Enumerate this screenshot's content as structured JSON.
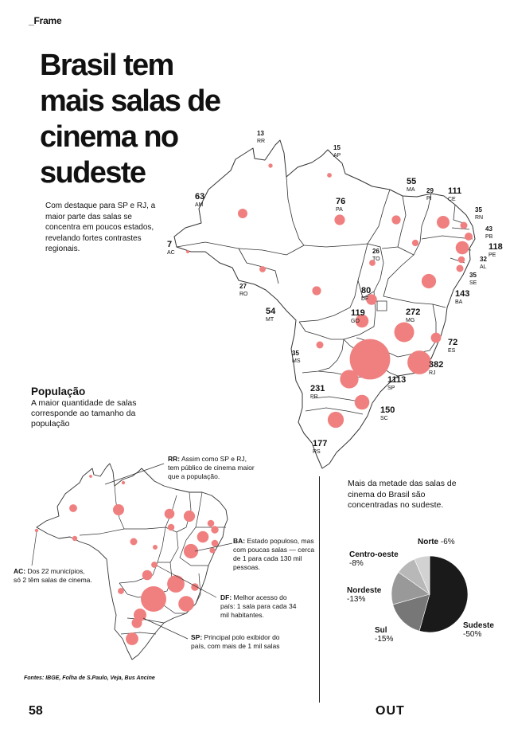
{
  "header": {
    "section": "_Frame"
  },
  "title": {
    "lines": [
      "Brasil tem",
      "mais salas de",
      "cinema no",
      "sudeste"
    ]
  },
  "intro": "Com destaque para SP e RJ, a maior parte das salas se concentra em poucos estados, revelando fortes contrastes regionais.",
  "population": {
    "title": "População",
    "subtitle": "A maior quantidade de salas corresponde ao tamanho da população"
  },
  "notes": {
    "rr": {
      "lead": "RR:",
      "text": "Assim como SP e RJ, tem público de cinema maior que a população."
    },
    "ba": {
      "lead": "BA:",
      "text": "Estado populoso, mas com poucas salas — cerca de 1 para cada 130 mil pessoas."
    },
    "ac": {
      "lead": "AC:",
      "text": "Dos 22 municípios, só 2 têm salas de cinema."
    },
    "df": {
      "lead": "DF:",
      "text": "Melhor acesso do país: 1 sala para cada 34 mil habitantes."
    },
    "sp": {
      "lead": "SP:",
      "text": "Principal polo exibidor do país, com mais de 1 mil salas"
    }
  },
  "pie_title": "Mais da metade das salas de cinema do Brasil são concentradas no sudeste.",
  "footer": {
    "sources": "Fontes: IBGE, Folha de S.Paulo, Veja, Bus Ancine",
    "page_number": "58",
    "brand": "OUT"
  },
  "colors": {
    "bubble": "#f08080",
    "map_fill": "#ffffff",
    "map_stroke": "#333333"
  },
  "chart_data": [
    {
      "type": "scatter",
      "subtype": "bubble-map",
      "value_label": "salas de cinema",
      "states": [
        {
          "uf": "RR",
          "value": "13"
        },
        {
          "uf": "AP",
          "value": "15"
        },
        {
          "uf": "AM",
          "value": "63"
        },
        {
          "uf": "AC",
          "value": "7"
        },
        {
          "uf": "RO",
          "value": "27"
        },
        {
          "uf": "MT",
          "value": "54"
        },
        {
          "uf": "PA",
          "value": "76"
        },
        {
          "uf": "MA",
          "value": "55"
        },
        {
          "uf": "PI",
          "value": "29"
        },
        {
          "uf": "CE",
          "value": "111"
        },
        {
          "uf": "RN",
          "value": "35"
        },
        {
          "uf": "PB",
          "value": "43"
        },
        {
          "uf": "PE",
          "value": "118"
        },
        {
          "uf": "AL",
          "value": "32"
        },
        {
          "uf": "SE",
          "value": "35"
        },
        {
          "uf": "BA",
          "value": "143"
        },
        {
          "uf": "TO",
          "value": "26"
        },
        {
          "uf": "DF",
          "value": "80"
        },
        {
          "uf": "GO",
          "value": "119"
        },
        {
          "uf": "MG",
          "value": "272"
        },
        {
          "uf": "ES",
          "value": "72"
        },
        {
          "uf": "RJ",
          "value": "382"
        },
        {
          "uf": "SP",
          "value": "1113"
        },
        {
          "uf": "MS",
          "value": "35"
        },
        {
          "uf": "PR",
          "value": "231"
        },
        {
          "uf": "SC",
          "value": "150"
        },
        {
          "uf": "RS",
          "value": "177"
        }
      ]
    },
    {
      "type": "scatter",
      "subtype": "bubble-map",
      "bubble_meaning": "população",
      "states": [
        {
          "uf": "RR",
          "value": 0.65
        },
        {
          "uf": "AP",
          "value": 0.85
        },
        {
          "uf": "AM",
          "value": 4.3
        },
        {
          "uf": "AC",
          "value": 0.9
        },
        {
          "uf": "RO",
          "value": 1.8
        },
        {
          "uf": "MT",
          "value": 3.7
        },
        {
          "uf": "PA",
          "value": 8.8
        },
        {
          "uf": "MA",
          "value": 7.1
        },
        {
          "uf": "PI",
          "value": 3.3
        },
        {
          "uf": "CE",
          "value": 9.2
        },
        {
          "uf": "RN",
          "value": 3.4
        },
        {
          "uf": "PB",
          "value": 4.0
        },
        {
          "uf": "PE",
          "value": 9.6
        },
        {
          "uf": "AL",
          "value": 3.3
        },
        {
          "uf": "SE",
          "value": 2.3
        },
        {
          "uf": "BA",
          "value": 14.9
        },
        {
          "uf": "TO",
          "value": 1.6
        },
        {
          "uf": "DF",
          "value": 2.8
        },
        {
          "uf": "GO",
          "value": 7.2
        },
        {
          "uf": "MG",
          "value": 21.4
        },
        {
          "uf": "ES",
          "value": 4.1
        },
        {
          "uf": "RJ",
          "value": 17.5
        },
        {
          "uf": "SP",
          "value": 46.6
        },
        {
          "uf": "MS",
          "value": 2.8
        },
        {
          "uf": "PR",
          "value": 11.6
        },
        {
          "uf": "SC",
          "value": 7.6
        },
        {
          "uf": "RS",
          "value": 11.4
        }
      ]
    },
    {
      "type": "pie",
      "slices": [
        {
          "label": "Sudeste",
          "display": "-50%",
          "value": 50,
          "color": "#1a1a1a"
        },
        {
          "label": "Sul",
          "display": "-15%",
          "value": 15,
          "color": "#777777"
        },
        {
          "label": "Nordeste",
          "display": "-13%",
          "value": 13,
          "color": "#999999"
        },
        {
          "label": "Centro-oeste",
          "display": "-8%",
          "value": 8,
          "color": "#b8b8b8"
        },
        {
          "label": "Norte",
          "display": "-6%",
          "value": 6,
          "color": "#d2d2d2"
        }
      ]
    }
  ]
}
